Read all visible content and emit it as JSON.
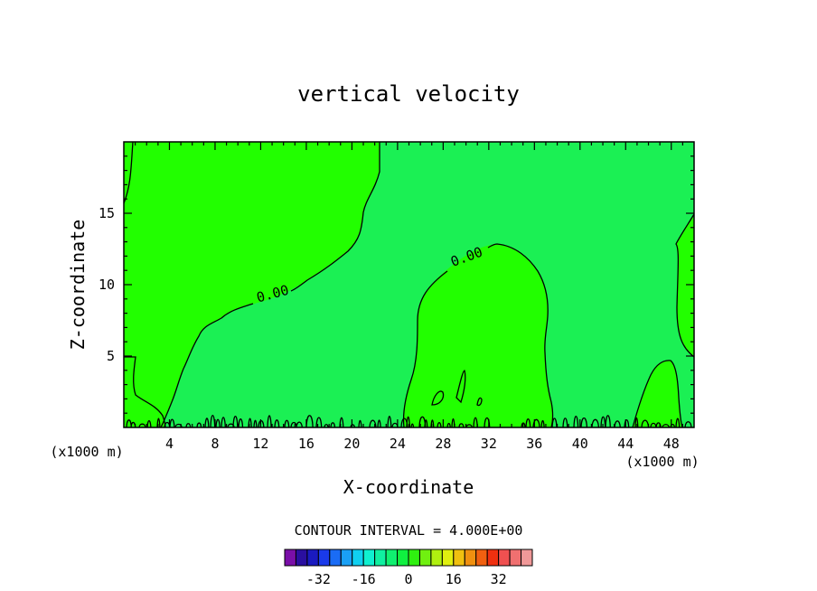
{
  "chart_data": {
    "type": "contour",
    "title": "vertical velocity",
    "xlabel": "X-coordinate",
    "ylabel": "Z-coordinate",
    "x_unit_left": "(x1000 m)",
    "x_unit_right": "(x1000 m)",
    "xlim": [
      0,
      50
    ],
    "ylim": [
      0,
      20
    ],
    "xticks": [
      4,
      8,
      12,
      16,
      20,
      24,
      28,
      32,
      36,
      40,
      44,
      48
    ],
    "xtick_labels": [
      "4",
      "8",
      "12",
      "16",
      "20",
      "24",
      "28",
      "32",
      "36",
      "40",
      "44",
      "48"
    ],
    "yticks": [
      5,
      10,
      15
    ],
    "ytick_labels": [
      "5",
      "10",
      "15"
    ],
    "contour_interval_text": "CONTOUR INTERVAL = 4.000E+00",
    "contour_labels": [
      "0.00",
      "0.00"
    ],
    "colorbar": {
      "colors": [
        "#7a0fa8",
        "#2a0fa0",
        "#1a1ac0",
        "#1a3aea",
        "#1a6cf5",
        "#1aa0f5",
        "#10d0f0",
        "#10f0d0",
        "#10f0a0",
        "#10f070",
        "#10f040",
        "#2ff010",
        "#70f010",
        "#b0f010",
        "#e0f010",
        "#f0c010",
        "#f09010",
        "#f06010",
        "#f03010",
        "#f05050",
        "#f07070",
        "#f09898"
      ],
      "tick_values": [
        -32,
        -16,
        0,
        16,
        32
      ],
      "tick_labels": [
        "-32",
        "-16",
        "0",
        "16",
        "32"
      ]
    },
    "fill_colors": {
      "negative": "#1bf054",
      "positive": "#22ff00"
    }
  }
}
